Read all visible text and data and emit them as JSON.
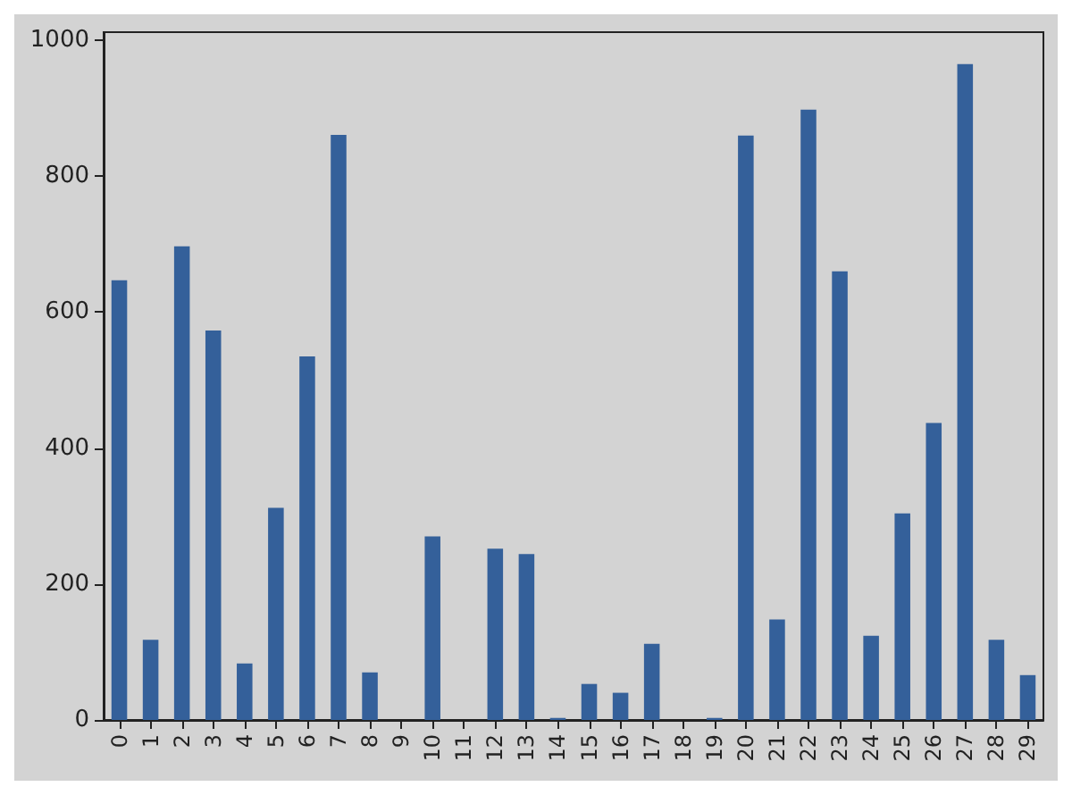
{
  "chart_data": {
    "type": "bar",
    "categories": [
      "0",
      "1",
      "2",
      "3",
      "4",
      "5",
      "6",
      "7",
      "8",
      "9",
      "10",
      "11",
      "12",
      "13",
      "14",
      "15",
      "16",
      "17",
      "18",
      "19",
      "20",
      "21",
      "22",
      "23",
      "24",
      "25",
      "26",
      "27",
      "28",
      "29"
    ],
    "values": [
      647,
      118,
      697,
      573,
      83,
      312,
      535,
      861,
      70,
      0,
      270,
      0,
      252,
      244,
      3,
      53,
      40,
      112,
      0,
      3,
      860,
      148,
      898,
      660,
      124,
      304,
      437,
      965,
      118,
      66
    ],
    "color": "#34609a",
    "ylim": [
      0,
      1012
    ],
    "yticks": [
      0,
      200,
      400,
      600,
      800,
      1000
    ],
    "grid": false
  }
}
